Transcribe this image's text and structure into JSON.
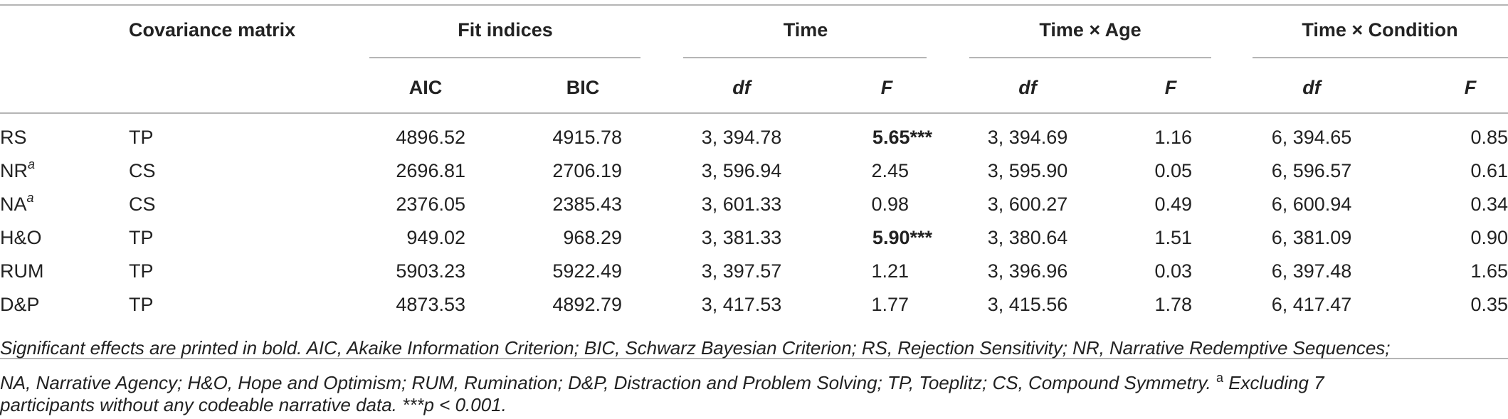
{
  "header": {
    "covariance": "Covariance matrix",
    "fit": "Fit indices",
    "time": "Time",
    "time_age": "Time × Age",
    "time_cond": "Time × Condition",
    "aic": "AIC",
    "bic": "BIC",
    "df": "df",
    "f": "F"
  },
  "rows": [
    {
      "label": "RS",
      "sup": "",
      "cov": "TP",
      "aic": "4896.52",
      "bic": "4915.78",
      "t_df": "3, 394.78",
      "t_f": "5.65***",
      "t_f_bold": true,
      "a_df": "3, 394.69",
      "a_f": "1.16",
      "c_df": "6, 394.65",
      "c_f": "0.85"
    },
    {
      "label": "NR",
      "sup": "a",
      "cov": "CS",
      "aic": "2696.81",
      "bic": "2706.19",
      "t_df": "3, 596.94",
      "t_f": "2.45",
      "t_f_bold": false,
      "a_df": "3, 595.90",
      "a_f": "0.05",
      "c_df": "6, 596.57",
      "c_f": "0.61"
    },
    {
      "label": "NA",
      "sup": "a",
      "cov": "CS",
      "aic": "2376.05",
      "bic": "2385.43",
      "t_df": "3, 601.33",
      "t_f": "0.98",
      "t_f_bold": false,
      "a_df": "3, 600.27",
      "a_f": "0.49",
      "c_df": "6, 600.94",
      "c_f": "0.34"
    },
    {
      "label": "H&O",
      "sup": "",
      "cov": "TP",
      "aic": "949.02",
      "bic": "968.29",
      "t_df": "3, 381.33",
      "t_f": "5.90***",
      "t_f_bold": true,
      "a_df": "3, 380.64",
      "a_f": "1.51",
      "c_df": "6, 381.09",
      "c_f": "0.90"
    },
    {
      "label": "RUM",
      "sup": "",
      "cov": "TP",
      "aic": "5903.23",
      "bic": "5922.49",
      "t_df": "3, 397.57",
      "t_f": "1.21",
      "t_f_bold": false,
      "a_df": "3, 396.96",
      "a_f": "0.03",
      "c_df": "6, 397.48",
      "c_f": "1.65"
    },
    {
      "label": "D&P",
      "sup": "",
      "cov": "TP",
      "aic": "4873.53",
      "bic": "4892.79",
      "t_df": "3, 417.53",
      "t_f": "1.77",
      "t_f_bold": false,
      "a_df": "3, 415.56",
      "a_f": "1.78",
      "c_df": "6, 417.47",
      "c_f": "0.35"
    }
  ],
  "footnote": {
    "line1": "Significant effects are printed in bold. AIC, Akaike Information Criterion; BIC, Schwarz Bayesian Criterion; RS, Rejection Sensitivity; NR, Narrative Redemptive Sequences;",
    "line2a": "NA, Narrative Agency; H&O, Hope and Optimism; RUM, Rumination; D&P, Distraction and Problem Solving; TP, Toeplitz; CS, Compound Symmetry.",
    "line2_sup": "a",
    "line2b": "Excluding 7",
    "line3": "participants without any codeable narrative data. ***p < 0.001."
  }
}
